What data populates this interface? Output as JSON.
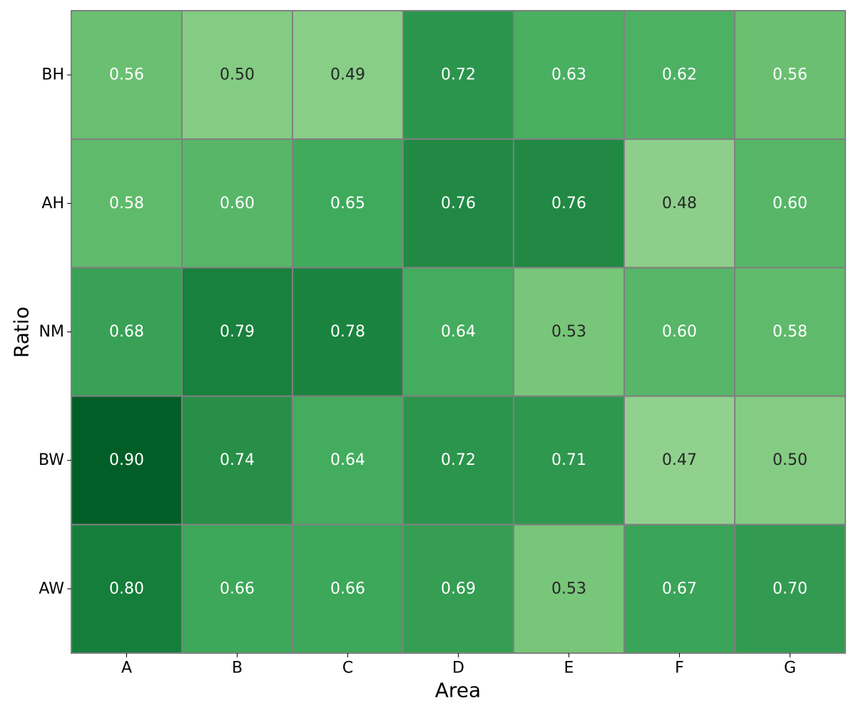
{
  "chart_data": {
    "type": "heatmap",
    "xlabel": "Area",
    "ylabel": "Ratio",
    "x_categories": [
      "A",
      "B",
      "C",
      "D",
      "E",
      "F",
      "G"
    ],
    "y_categories": [
      "BH",
      "AH",
      "NM",
      "BW",
      "AW"
    ],
    "values": [
      [
        0.56,
        0.5,
        0.49,
        0.72,
        0.63,
        0.62,
        0.56
      ],
      [
        0.58,
        0.6,
        0.65,
        0.76,
        0.76,
        0.48,
        0.6
      ],
      [
        0.68,
        0.79,
        0.78,
        0.64,
        0.53,
        0.6,
        0.58
      ],
      [
        0.9,
        0.74,
        0.64,
        0.72,
        0.71,
        0.47,
        0.5
      ],
      [
        0.8,
        0.66,
        0.66,
        0.69,
        0.53,
        0.67,
        0.7
      ]
    ],
    "value_format": "2 decimals",
    "colormap": "Greens",
    "color_range": [
      0.47,
      0.9
    ],
    "cell_border_color": "#808080",
    "dark_text_color": "#262626",
    "light_text_color": "#ffffff",
    "legend": "none"
  }
}
